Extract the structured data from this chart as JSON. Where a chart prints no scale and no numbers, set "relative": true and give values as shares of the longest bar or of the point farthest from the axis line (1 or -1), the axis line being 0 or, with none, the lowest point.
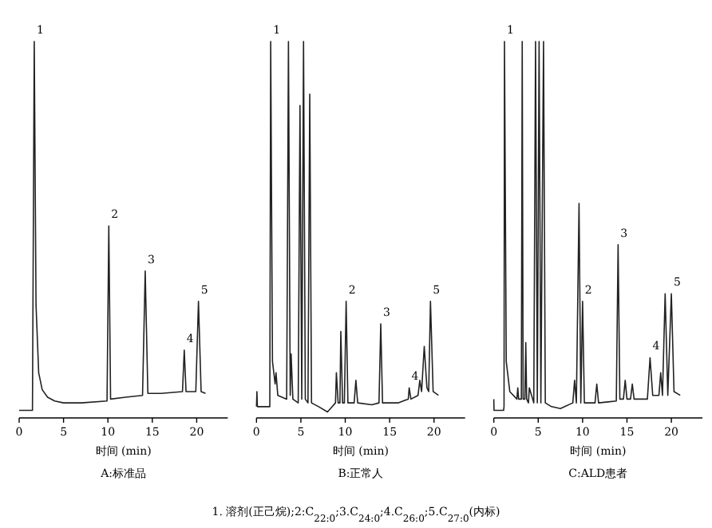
{
  "chart_data": [
    {
      "type": "line",
      "title": "A:标准品",
      "xlabel": "时间 (min)",
      "relative": true,
      "xlim": [
        0,
        23.5
      ],
      "xticks": [
        0,
        5,
        10,
        15,
        20
      ],
      "series": [
        {
          "color": "#222222",
          "x": [
            0,
            1.5,
            1.5,
            1.7,
            1.9,
            2.2,
            2.6,
            3.2,
            4,
            5,
            7,
            9.9,
            10.1,
            10.3,
            12,
            13.9,
            14.2,
            14.5,
            16,
            18.4,
            18.6,
            18.8,
            19.9,
            20.2,
            20.5,
            21
          ],
          "values": [
            0.02,
            0.02,
            0.03,
            1,
            0.3,
            0.12,
            0.075,
            0.055,
            0.045,
            0.04,
            0.04,
            0.045,
            0.51,
            0.05,
            0.055,
            0.06,
            0.39,
            0.065,
            0.065,
            0.07,
            0.18,
            0.07,
            0.07,
            0.31,
            0.07,
            0.065
          ]
        }
      ],
      "annotations": [
        {
          "text": "1",
          "x": 1.7,
          "y": 1
        },
        {
          "text": "2",
          "x": 10.1,
          "y": 0.51
        },
        {
          "text": "3",
          "x": 14.2,
          "y": 0.39
        },
        {
          "text": "4",
          "x": 18.6,
          "y": 0.18
        },
        {
          "text": "5",
          "x": 20.2,
          "y": 0.31
        }
      ]
    },
    {
      "type": "line",
      "title": "B:正常人",
      "xlabel": "时间 (min)",
      "relative": true,
      "xlim": [
        0,
        23.5
      ],
      "xticks": [
        0,
        5,
        10,
        15,
        20
      ],
      "series": [
        {
          "color": "#222222",
          "x": [
            0,
            0.05,
            0.1,
            1.4,
            1.5,
            1.6,
            1.8,
            2.1,
            2.2,
            2.4,
            3.4,
            3.6,
            3.8,
            3.9,
            4.1,
            4.7,
            4.9,
            5.1,
            5.3,
            5.5,
            5.8,
            6.0,
            6.2,
            7,
            8,
            8.9,
            9.0,
            9.2,
            9.4,
            9.5,
            9.7,
            9.9,
            10.1,
            10.3,
            11.0,
            11.2,
            11.4,
            13,
            13.8,
            14.0,
            14.2,
            16,
            17.1,
            17.2,
            17.4,
            18.2,
            18.4,
            18.6,
            18.9,
            19.2,
            19.4,
            19.6,
            19.9,
            20.5
          ],
          "values": [
            0.03,
            0.07,
            0.03,
            0.03,
            0.03,
            1,
            0.15,
            0.09,
            0.12,
            0.06,
            0.05,
            1,
            0.06,
            0.17,
            0.05,
            0.04,
            0.83,
            0.05,
            1,
            0.05,
            0.04,
            0.86,
            0.04,
            0.03,
            0.016,
            0.04,
            0.12,
            0.04,
            0.04,
            0.23,
            0.04,
            0.04,
            0.31,
            0.04,
            0.04,
            0.1,
            0.04,
            0.035,
            0.04,
            0.25,
            0.04,
            0.04,
            0.05,
            0.08,
            0.05,
            0.06,
            0.1,
            0.07,
            0.19,
            0.08,
            0.07,
            0.31,
            0.07,
            0.06
          ]
        }
      ],
      "annotations": [
        {
          "text": "1",
          "x": 1.6,
          "y": 1
        },
        {
          "text": "2",
          "x": 10.1,
          "y": 0.31
        },
        {
          "text": "3",
          "x": 14.0,
          "y": 0.25
        },
        {
          "text": "4",
          "x": 17.2,
          "y": 0.08
        },
        {
          "text": "5",
          "x": 19.6,
          "y": 0.31
        },
        "1. 溶剂(正己烷);2:C$_{22:0}$;3.C$_{24:0}$;4.C$_{26:0}$;5.C$_{27:0}$(内标)"
      ]
    },
    {
      "type": "line",
      "title": "C:ALD患者",
      "xlabel": "时间 (min)",
      "relative": true,
      "xlim": [
        0,
        23.5
      ],
      "xticks": [
        0,
        5,
        10,
        15,
        20
      ],
      "series": [
        {
          "color": "#222222",
          "x": [
            0,
            0.02,
            1.1,
            1.15,
            1.2,
            1.4,
            1.8,
            2.6,
            2.7,
            2.8,
            3.1,
            3.2,
            3.3,
            3.5,
            3.6,
            3.7,
            3.9,
            4.0,
            4.5,
            4.7,
            4.9,
            5.1,
            5.3,
            5.6,
            5.8,
            6.5,
            7.5,
            8.9,
            9.1,
            9.3,
            9.6,
            9.8,
            10.0,
            10.2,
            11.4,
            11.6,
            11.8,
            13.8,
            14.0,
            14.2,
            14.6,
            14.8,
            15.0,
            15.4,
            15.6,
            15.8,
            17.3,
            17.6,
            17.9,
            18.6,
            18.8,
            19.0,
            19.3,
            19.6,
            20.0,
            20.3,
            21
          ],
          "values": [
            0.05,
            0.02,
            0.02,
            0.03,
            1,
            0.15,
            0.07,
            0.05,
            0.08,
            0.05,
            0.05,
            1,
            0.05,
            0.05,
            0.2,
            0.05,
            0.04,
            0.08,
            0.04,
            1,
            0.04,
            1,
            0.04,
            1,
            0.04,
            0.03,
            0.025,
            0.04,
            0.1,
            0.04,
            0.57,
            0.04,
            0.31,
            0.04,
            0.04,
            0.09,
            0.04,
            0.045,
            0.46,
            0.05,
            0.05,
            0.1,
            0.05,
            0.05,
            0.09,
            0.05,
            0.05,
            0.16,
            0.06,
            0.06,
            0.12,
            0.06,
            0.33,
            0.06,
            0.33,
            0.07,
            0.06
          ]
        }
      ],
      "annotations": [
        {
          "text": "1",
          "x": 1.2,
          "y": 1
        },
        {
          "text": "2",
          "x": 10.0,
          "y": 0.31
        },
        {
          "text": "3",
          "x": 14.0,
          "y": 0.46
        },
        {
          "text": "4",
          "x": 17.6,
          "y": 0.16
        },
        {
          "text": "5",
          "x": 20.0,
          "y": 0.33
        }
      ]
    }
  ]
}
